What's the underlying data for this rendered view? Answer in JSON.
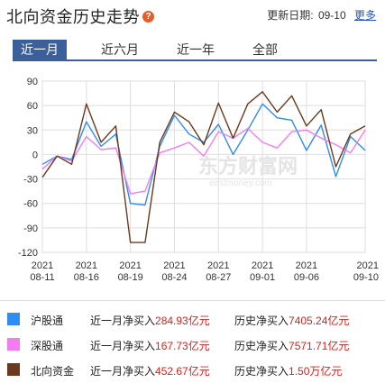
{
  "header": {
    "title": "北向资金历史走势",
    "help_glyph": "?",
    "update_label": "更新日期:",
    "update_date": "09-10",
    "more_label": "更多"
  },
  "tabs": [
    {
      "label": "近一月",
      "active": true
    },
    {
      "label": "近六月",
      "active": false
    },
    {
      "label": "近一年",
      "active": false
    },
    {
      "label": "全部",
      "active": false
    }
  ],
  "legend": [
    {
      "name": "沪股通",
      "color": "#2f8cf0",
      "month_label": "近一月净买入",
      "month_value": "284.93",
      "month_unit": "亿元",
      "hist_label": "历史净买入",
      "hist_value": "7405.24",
      "hist_unit": "亿元"
    },
    {
      "name": "深股通",
      "color": "#f57cf0",
      "month_label": "近一月净买入",
      "month_value": "167.73",
      "month_unit": "亿元",
      "hist_label": "历史净买入",
      "hist_value": "7571.71",
      "hist_unit": "亿元"
    },
    {
      "name": "北向资金",
      "color": "#6b3a1e",
      "month_label": "近一月净买入",
      "month_value": "452.67",
      "month_unit": "亿元",
      "hist_label": "历史净买入",
      "hist_value": "1.50",
      "hist_unit": "万亿元"
    }
  ],
  "chart_data": {
    "type": "line",
    "title": "",
    "xlabel": "",
    "ylabel": "",
    "ylim": [
      -120,
      90
    ],
    "yticks": [
      90,
      60,
      30,
      0,
      -30,
      -60,
      -90,
      -120
    ],
    "grid": true,
    "x_tick_labels": [
      {
        "top": "2021",
        "bottom": "08-11"
      },
      {
        "top": "2021",
        "bottom": "08-16"
      },
      {
        "top": "2021",
        "bottom": "08-19"
      },
      {
        "top": "2021",
        "bottom": "08-24"
      },
      {
        "top": "2021",
        "bottom": "08-27"
      },
      {
        "top": "2021",
        "bottom": "09-01"
      },
      {
        "top": "2021",
        "bottom": "09-06"
      },
      {
        "top": "2021",
        "bottom": "09-10"
      }
    ],
    "x_tick_index": [
      0,
      3,
      6,
      9,
      12,
      15,
      18,
      22
    ],
    "series": [
      {
        "name": "沪股通",
        "color": "#2f8cf0",
        "values": [
          -12,
          -2,
          -6,
          40,
          10,
          25,
          -60,
          -62,
          10,
          48,
          25,
          15,
          37,
          0,
          30,
          62,
          45,
          42,
          5,
          36,
          -27,
          22,
          5
        ]
      },
      {
        "name": "深股通",
        "color": "#f57cf0",
        "values": [
          -18,
          -2,
          -8,
          22,
          6,
          8,
          -48,
          -45,
          2,
          8,
          15,
          -2,
          28,
          20,
          32,
          15,
          8,
          28,
          30,
          20,
          12,
          2,
          30
        ]
      },
      {
        "name": "北向资金",
        "color": "#6b3a1e",
        "values": [
          -28,
          -2,
          -12,
          62,
          15,
          35,
          -108,
          -108,
          15,
          52,
          40,
          12,
          63,
          20,
          62,
          77,
          52,
          72,
          35,
          55,
          -15,
          25,
          35
        ]
      }
    ]
  }
}
